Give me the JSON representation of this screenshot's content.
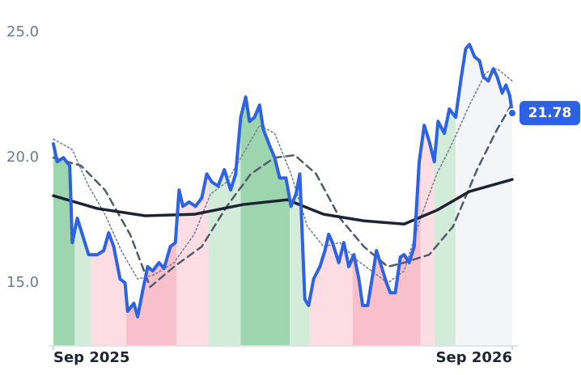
{
  "chart_data": {
    "type": "line",
    "xlim": [
      0,
      365
    ],
    "xticks": [
      {
        "value": 0,
        "label": "Sep 2025"
      },
      {
        "value": 365,
        "label": "Sep 2026"
      }
    ],
    "ylim": [
      12.52,
      25.97
    ],
    "yticks": [
      {
        "value": 15,
        "label": "15.0"
      },
      {
        "value": 20,
        "label": "20.0"
      },
      {
        "value": 25,
        "label": "25.0"
      }
    ],
    "grid": false,
    "regions": [
      {
        "start": 0,
        "end": 17,
        "color": "#9dd5ae"
      },
      {
        "start": 17,
        "end": 30,
        "color": "#d3ecda"
      },
      {
        "start": 30,
        "end": 58,
        "color": "#fcdde3"
      },
      {
        "start": 58,
        "end": 98,
        "color": "#f8c0cb"
      },
      {
        "start": 98,
        "end": 123,
        "color": "#fcdde3"
      },
      {
        "start": 123,
        "end": 149,
        "color": "#d3ecda"
      },
      {
        "start": 149,
        "end": 188,
        "color": "#9dd5ae"
      },
      {
        "start": 188,
        "end": 204,
        "color": "#d3ecda"
      },
      {
        "start": 204,
        "end": 238,
        "color": "#fcdde3"
      },
      {
        "start": 238,
        "end": 292,
        "color": "#f8c0cb"
      },
      {
        "start": 292,
        "end": 303,
        "color": "#fcdde3"
      },
      {
        "start": 303,
        "end": 320,
        "color": "#d3ecda"
      },
      {
        "start": 320,
        "end": 365,
        "color": "#f4f5f8"
      }
    ],
    "series": [
      {
        "color": "#2c62e3",
        "width": 4,
        "dash": "none",
        "x": [
          0,
          3,
          8,
          13,
          15,
          19,
          22,
          28,
          35,
          40,
          44,
          48,
          53,
          57,
          59,
          64,
          67,
          71,
          75,
          79,
          84,
          88,
          93,
          97,
          100,
          103,
          108,
          113,
          118,
          122,
          126,
          131,
          136,
          141,
          145,
          149,
          153,
          156,
          160,
          164,
          167,
          172,
          176,
          180,
          185,
          189,
          193,
          196,
          200,
          203,
          207,
          212,
          216,
          219,
          222,
          227,
          231,
          235,
          239,
          243,
          246,
          250,
          254,
          257,
          261,
          265,
          268,
          272,
          276,
          279,
          283,
          287,
          291,
          295,
          299,
          303,
          306,
          311,
          315,
          320,
          324,
          328,
          331,
          335,
          339,
          342,
          346,
          350,
          353,
          357,
          360,
          363,
          365
        ],
        "values": [
          20.55,
          19.84,
          20.0,
          19.68,
          16.61,
          17.58,
          17.1,
          16.13,
          16.13,
          16.29,
          17.0,
          16.45,
          15.16,
          15.0,
          13.87,
          14.19,
          13.65,
          14.68,
          15.65,
          15.48,
          15.81,
          15.58,
          16.45,
          16.61,
          18.71,
          18.06,
          18.23,
          18.06,
          18.39,
          19.35,
          19.03,
          18.87,
          19.52,
          18.71,
          19.35,
          21.61,
          22.42,
          21.45,
          21.61,
          22.1,
          21.13,
          20.48,
          20.0,
          19.19,
          19.19,
          18.06,
          18.55,
          19.35,
          14.35,
          14.1,
          15.16,
          15.65,
          16.29,
          16.94,
          16.61,
          15.81,
          16.61,
          15.65,
          16.13,
          15.16,
          14.1,
          14.1,
          15.32,
          16.29,
          15.65,
          15.0,
          14.61,
          14.61,
          16.03,
          16.13,
          15.81,
          16.45,
          19.84,
          21.29,
          20.65,
          19.84,
          21.45,
          20.97,
          21.94,
          21.61,
          23.06,
          24.35,
          24.52,
          24.03,
          23.87,
          23.23,
          23.06,
          23.55,
          23.23,
          22.58,
          22.9,
          22.48,
          21.78
        ]
      },
      {
        "color": "#1d2333",
        "width": 3.5,
        "dash": "none",
        "x": [
          0,
          35,
          73,
          112,
          151,
          186,
          215,
          247,
          279,
          305,
          331,
          365
        ],
        "values": [
          18.48,
          17.97,
          17.68,
          17.74,
          18.13,
          18.32,
          17.74,
          17.48,
          17.35,
          17.9,
          18.65,
          19.13
        ]
      },
      {
        "color": "#525b6e",
        "width": 2.5,
        "dash": "9 6",
        "x": [
          0,
          22,
          41,
          61,
          77,
          96,
          118,
          138,
          157,
          176,
          192,
          209,
          228,
          247,
          266,
          279,
          299,
          318,
          337,
          353,
          365
        ],
        "values": [
          20.0,
          19.68,
          18.71,
          16.94,
          14.84,
          15.65,
          16.45,
          18.06,
          19.35,
          20.0,
          20.1,
          19.35,
          17.58,
          16.45,
          15.65,
          15.81,
          16.13,
          17.26,
          19.52,
          21.13,
          22.16
        ]
      },
      {
        "color": "#7b8190",
        "width": 1.6,
        "dash": "2 3",
        "x": [
          0,
          15,
          28,
          41,
          54,
          67,
          80,
          96,
          112,
          125,
          138,
          151,
          164,
          176,
          189,
          202,
          215,
          228,
          240,
          253,
          266,
          279,
          292,
          305,
          318,
          331,
          344,
          353,
          365
        ],
        "values": [
          20.74,
          20.32,
          18.87,
          17.74,
          16.29,
          15.16,
          15.32,
          15.81,
          16.94,
          18.55,
          19.03,
          20.16,
          21.29,
          20.97,
          19.35,
          17.26,
          16.45,
          16.61,
          15.97,
          15.48,
          15.0,
          15.48,
          17.58,
          19.35,
          20.65,
          22.1,
          23.39,
          23.55,
          23.06
        ]
      }
    ],
    "last_label_color": "#2c62e3"
  }
}
